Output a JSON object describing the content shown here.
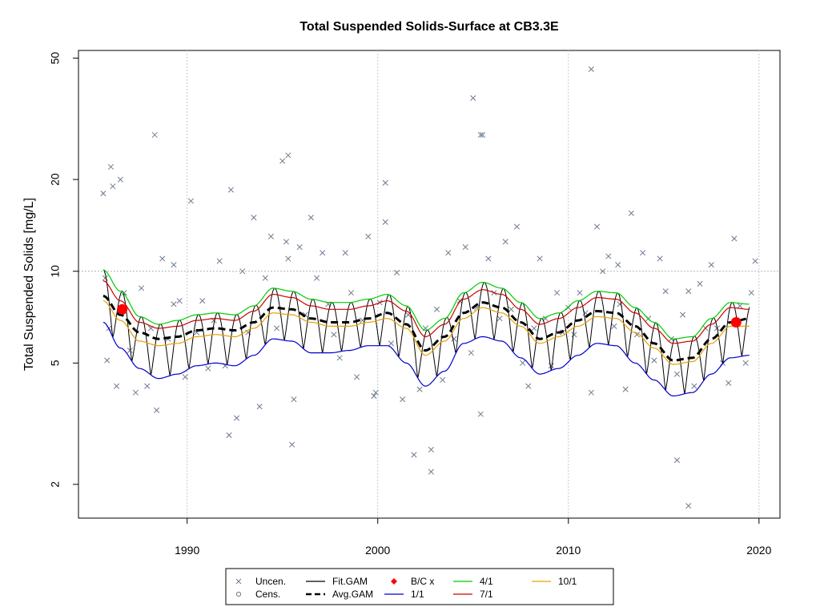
{
  "chart_data": {
    "type": "line",
    "title": "Total Suspended Solids-Surface at CB3.3E",
    "xlabel": "",
    "ylabel": "Total Suspended Solids [mg/L]",
    "y_scale": "log",
    "xlim": [
      1984.3,
      2021.1
    ],
    "ylim": [
      1.55,
      53
    ],
    "x_ticks": [
      1990,
      2000,
      2010,
      2020
    ],
    "y_ticks": [
      2,
      5,
      10,
      20,
      50
    ],
    "grid": true,
    "reference_line_y": 10,
    "legend_position": "bottom-center",
    "legend": [
      {
        "label": "Uncen.",
        "symbol": "x",
        "color": "#6b7a8f"
      },
      {
        "label": "Cens.",
        "symbol": "circle",
        "color": "#6b7a8f"
      },
      {
        "label": "Fit.GAM",
        "symbol": "line",
        "color": "#000000"
      },
      {
        "label": "Avg.GAM",
        "symbol": "dashed",
        "color": "#000000"
      },
      {
        "label": "B/C x",
        "symbol": "diamond",
        "color": "#ff0000"
      },
      {
        "label": "1/1",
        "symbol": "line",
        "color": "#0000cd"
      },
      {
        "label": "4/1",
        "symbol": "line",
        "color": "#00cc00"
      },
      {
        "label": "7/1",
        "symbol": "line",
        "color": "#cc0000"
      },
      {
        "label": "10/1",
        "symbol": "line",
        "color": "#e6a000"
      }
    ],
    "series": [
      {
        "name": "Avg.GAM",
        "style": "dashed",
        "color": "#000000",
        "x": [
          1985.6,
          1986.5,
          1987.5,
          1988.5,
          1989.5,
          1990.5,
          1991.5,
          1992.5,
          1993.5,
          1994.5,
          1995.5,
          1996.5,
          1997.5,
          1998.5,
          1999.5,
          2000.5,
          2001.5,
          2002.5,
          2003.5,
          2004.5,
          2005.5,
          2006.5,
          2007.5,
          2008.5,
          2009.5,
          2010.5,
          2011.5,
          2012.5,
          2013.5,
          2014.5,
          2015.5,
          2016.5,
          2017.5,
          2018.5,
          2019.5
        ],
        "y": [
          8.3,
          7.2,
          6.3,
          6.0,
          6.1,
          6.4,
          6.5,
          6.4,
          6.8,
          7.6,
          7.5,
          7.0,
          6.8,
          6.8,
          7.0,
          7.3,
          6.7,
          5.5,
          6.1,
          7.3,
          7.9,
          7.6,
          6.8,
          6.0,
          6.3,
          6.9,
          7.4,
          7.3,
          6.6,
          5.8,
          5.1,
          5.2,
          6.0,
          6.8,
          7.0
        ]
      },
      {
        "name": "1/1",
        "style": "solid",
        "color": "#0000cd",
        "x": [
          1985.6,
          1986.5,
          1987.5,
          1988.5,
          1989.5,
          1990.5,
          1991.5,
          1992.5,
          1993.5,
          1994.5,
          1995.5,
          1996.5,
          1997.5,
          1998.5,
          1999.5,
          2000.5,
          2001.5,
          2002.5,
          2003.5,
          2004.5,
          2005.5,
          2006.5,
          2007.5,
          2008.5,
          2009.5,
          2010.5,
          2011.5,
          2012.5,
          2013.5,
          2014.5,
          2015.5,
          2016.5,
          2017.5,
          2018.5,
          2019.5
        ],
        "y": [
          6.8,
          5.6,
          4.8,
          4.45,
          4.6,
          4.9,
          5.0,
          4.9,
          5.3,
          6.0,
          5.9,
          5.4,
          5.4,
          5.5,
          5.7,
          5.7,
          5.0,
          4.2,
          4.7,
          5.8,
          6.1,
          5.9,
          5.2,
          4.6,
          4.8,
          5.3,
          5.8,
          5.7,
          5.0,
          4.4,
          3.9,
          4.0,
          4.6,
          5.2,
          5.3
        ]
      },
      {
        "name": "4/1",
        "style": "solid",
        "color": "#00cc00",
        "x": [
          1985.6,
          1986.5,
          1987.5,
          1988.5,
          1989.5,
          1990.5,
          1991.5,
          1992.5,
          1993.5,
          1994.5,
          1995.5,
          1996.5,
          1997.5,
          1998.5,
          1999.5,
          2000.5,
          2001.5,
          2002.5,
          2003.5,
          2004.5,
          2005.5,
          2006.5,
          2007.5,
          2008.5,
          2009.5,
          2010.5,
          2011.5,
          2012.5,
          2013.5,
          2014.5,
          2015.5,
          2016.5,
          2017.5,
          2018.5,
          2019.5
        ],
        "y": [
          10.1,
          8.6,
          7.1,
          6.7,
          6.9,
          7.2,
          7.3,
          7.2,
          7.7,
          8.8,
          8.6,
          8.1,
          7.9,
          7.9,
          8.1,
          8.4,
          7.7,
          6.4,
          7.0,
          8.5,
          9.2,
          8.8,
          7.9,
          7.0,
          7.3,
          8.0,
          8.6,
          8.5,
          7.6,
          6.8,
          6.0,
          6.1,
          7.0,
          7.9,
          7.8
        ]
      },
      {
        "name": "7/1",
        "style": "solid",
        "color": "#cc0000",
        "x": [
          1985.6,
          1986.5,
          1987.5,
          1988.5,
          1989.5,
          1990.5,
          1991.5,
          1992.5,
          1993.5,
          1994.5,
          1995.5,
          1996.5,
          1997.5,
          1998.5,
          1999.5,
          2000.5,
          2001.5,
          2002.5,
          2003.5,
          2004.5,
          2005.5,
          2006.5,
          2007.5,
          2008.5,
          2009.5,
          2010.5,
          2011.5,
          2012.5,
          2013.5,
          2014.5,
          2015.5,
          2016.5,
          2017.5,
          2018.5,
          2019.5
        ],
        "y": [
          9.3,
          8.0,
          6.8,
          6.5,
          6.6,
          6.9,
          7.0,
          6.9,
          7.4,
          8.4,
          8.2,
          7.7,
          7.5,
          7.5,
          7.7,
          8.0,
          7.4,
          6.1,
          6.7,
          8.1,
          8.7,
          8.4,
          7.5,
          6.7,
          7.0,
          7.6,
          8.2,
          8.1,
          7.3,
          6.5,
          5.8,
          5.9,
          6.7,
          7.6,
          7.5
        ]
      },
      {
        "name": "10/1",
        "style": "solid",
        "color": "#e6a000",
        "x": [
          1985.6,
          1986.5,
          1987.5,
          1988.5,
          1989.5,
          1990.5,
          1991.5,
          1992.5,
          1993.5,
          1994.5,
          1995.5,
          1996.5,
          1997.5,
          1998.5,
          1999.5,
          2000.5,
          2001.5,
          2002.5,
          2003.5,
          2004.5,
          2005.5,
          2006.5,
          2007.5,
          2008.5,
          2009.5,
          2010.5,
          2011.5,
          2012.5,
          2013.5,
          2014.5,
          2015.5,
          2016.5,
          2017.5,
          2018.5,
          2019.5
        ],
        "y": [
          8.0,
          6.9,
          5.9,
          5.7,
          5.8,
          6.1,
          6.2,
          6.1,
          6.5,
          7.3,
          7.2,
          6.8,
          6.6,
          6.6,
          6.8,
          7.0,
          6.5,
          5.3,
          5.9,
          7.0,
          7.6,
          7.3,
          6.6,
          5.8,
          6.1,
          6.6,
          7.1,
          7.0,
          6.3,
          5.6,
          4.95,
          5.05,
          5.8,
          6.6,
          6.6
        ]
      }
    ],
    "fit_gam": {
      "name": "Fit.GAM",
      "color": "#000000",
      "description_values": "seasonal GAM fit oscillating each year between the 1/1 and 4/1 curves"
    },
    "bc_points": [
      {
        "x": 1986.6,
        "y": 7.5
      },
      {
        "x": 2018.8,
        "y": 6.8
      }
    ],
    "observations": {
      "symbol": "x",
      "color": "#6b7a8f",
      "x": [
        1985.6,
        1985.7,
        1985.9,
        1986.1,
        1986.3,
        1986.5,
        1986.7,
        1987.0,
        1987.3,
        1987.6,
        1987.9,
        1988.1,
        1988.4,
        1988.7,
        1989.0,
        1989.3,
        1989.6,
        1989.9,
        1990.2,
        1990.5,
        1990.8,
        1991.1,
        1991.4,
        1991.7,
        1992.0,
        1992.3,
        1992.6,
        1992.9,
        1993.2,
        1993.5,
        1993.8,
        1994.1,
        1994.4,
        1994.7,
        1995.0,
        1995.3,
        1995.6,
        1995.9,
        1996.2,
        1996.5,
        1996.8,
        1997.1,
        1997.4,
        1997.7,
        1998.0,
        1998.3,
        1998.6,
        1998.9,
        1999.2,
        1999.5,
        1999.8,
        2000.1,
        2000.4,
        2000.7,
        2001.0,
        2001.3,
        2001.6,
        2001.9,
        2002.2,
        2002.5,
        2002.8,
        2003.1,
        2003.4,
        2003.7,
        2004.0,
        2004.3,
        2004.6,
        2004.9,
        2005.2,
        2005.5,
        2005.8,
        2006.1,
        2006.4,
        2006.7,
        2007.0,
        2007.3,
        2007.6,
        2007.9,
        2008.2,
        2008.5,
        2008.8,
        2009.1,
        2009.4,
        2009.7,
        2010.0,
        2010.3,
        2010.6,
        2010.9,
        2011.2,
        2011.5,
        2011.8,
        2012.1,
        2012.4,
        2012.7,
        2013.0,
        2013.3,
        2013.6,
        2013.9,
        2014.2,
        2014.5,
        2014.8,
        2015.1,
        2015.4,
        2015.7,
        2016.0,
        2016.3,
        2016.6,
        2016.9,
        2017.2,
        2017.5,
        2017.8,
        2018.1,
        2018.4,
        2018.7,
        2019.0,
        2019.3,
        2019.6,
        2019.8,
        2005.0,
        2005.4,
        2011.2,
        1988.3,
        1995.3,
        1999.9,
        2000.4,
        2005.4,
        1992.2,
        1995.5,
        1986.0,
        2002.8,
        2015.7,
        2016.3,
        1995.2,
        2012.6,
        1989.3,
        1985.8
      ],
      "y": [
        18,
        9.5,
        6.5,
        19,
        4.2,
        20,
        8.5,
        5.5,
        4.0,
        8.8,
        4.2,
        6.5,
        3.5,
        11,
        6.0,
        7.8,
        8.0,
        4.5,
        17,
        6.3,
        8.0,
        4.8,
        6.9,
        10.8,
        4.9,
        18.5,
        3.3,
        10.0,
        6.3,
        15,
        3.6,
        9.5,
        13,
        6.5,
        23,
        11,
        3.8,
        12,
        7.2,
        15,
        9.5,
        11.5,
        7.8,
        6.2,
        5.2,
        11.5,
        8.5,
        4.5,
        6.9,
        13,
        3.9,
        7.9,
        14.5,
        5.8,
        9.9,
        3.8,
        7.2,
        2.5,
        4.1,
        6.5,
        2.2,
        7.5,
        4.4,
        11.5,
        6.0,
        8.0,
        12,
        5.4,
        7.6,
        28,
        11,
        8.5,
        7.0,
        12.5,
        7.5,
        14,
        5.0,
        4.2,
        6.5,
        11,
        7.0,
        4.9,
        8.5,
        6.3,
        7.6,
        6.2,
        8.5,
        7.3,
        4.0,
        14,
        10,
        11.2,
        6.6,
        7.8,
        4.1,
        15.5,
        6.2,
        11.5,
        7.0,
        5.1,
        11,
        8.6,
        6.0,
        4.6,
        7.2,
        8.6,
        4.2,
        9.1,
        6.5,
        10.5,
        6.5,
        5.0,
        4.3,
        12.8,
        7.7,
        5.0,
        8.5,
        10.8,
        37,
        28,
        46,
        28,
        24,
        4.0,
        19.5,
        3.4,
        2.9,
        2.7,
        22,
        2.6,
        2.4,
        1.7,
        12.5,
        10.5,
        10.5,
        5.1
      ]
    }
  }
}
